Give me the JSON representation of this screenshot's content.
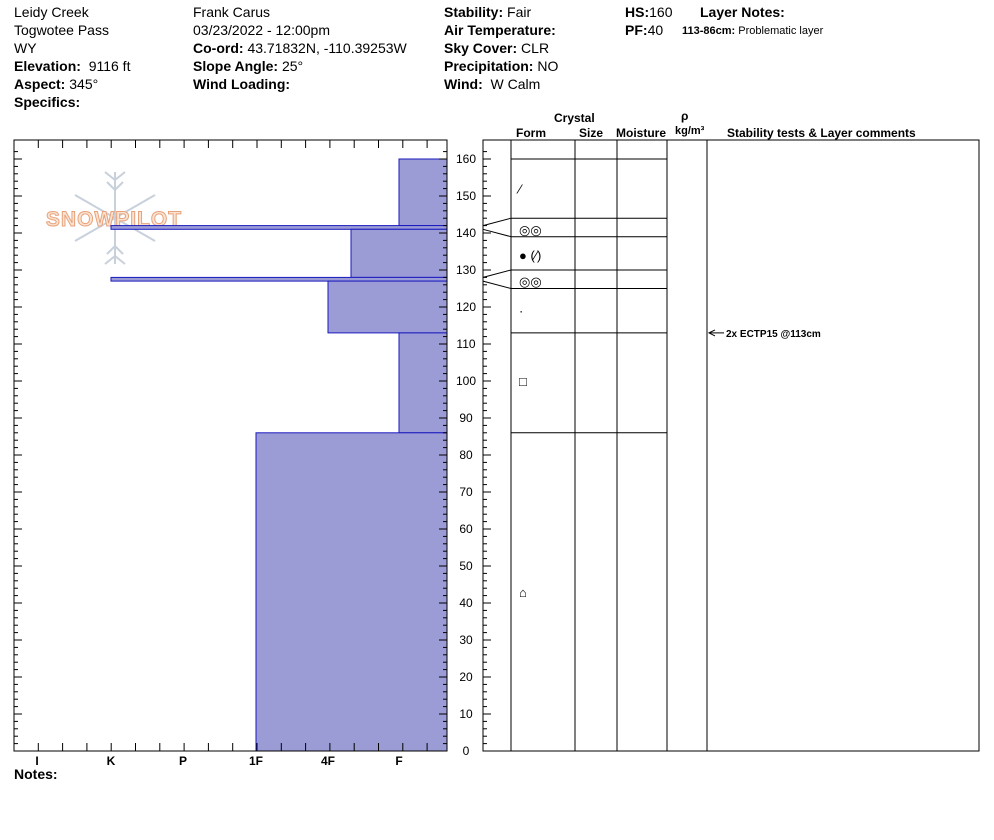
{
  "header": {
    "location": "Leidy Creek",
    "pass": "Togwotee Pass",
    "state": "WY",
    "elevation_label": "Elevation:",
    "elevation_value": "9116 ft",
    "aspect_label": "Aspect:",
    "aspect_value": "345°",
    "specifics_label": "Specifics:",
    "observer": "Frank  Carus",
    "datetime": "03/23/2022 - 12:00pm",
    "coord_label": "Co-ord:",
    "coord_value": "43.71832N, -110.39253W",
    "slope_label": "Slope Angle:",
    "slope_value": "25°",
    "wind_loading_label": "Wind Loading:",
    "stability_label": "Stability:",
    "stability_value": "Fair",
    "air_temp_label": "Air Temperature:",
    "sky_label": "Sky Cover:",
    "sky_value": "CLR",
    "precip_label": "Precipitation:",
    "precip_value": "NO",
    "wind_label": "Wind:",
    "wind_value": "W Calm",
    "hs_label": "HS:",
    "hs_value": "160",
    "pf_label": "PF:",
    "pf_value": "40",
    "layer_notes_label": "Layer Notes:",
    "layer_note_range": "113-86cm:",
    "layer_note_text": "Problematic layer"
  },
  "logo_text": "SNOWPILOT",
  "notes_label": "Notes:",
  "columns": {
    "crystal": "Crystal",
    "form": "Form",
    "size": "Size",
    "moisture": "Moisture",
    "rho": "ρ",
    "density_unit": "kg/m³",
    "stability": "Stability tests & Layer comments"
  },
  "stability_comment": "2x ECTP15 @113cm",
  "chart_data": {
    "type": "bar",
    "orientation": "horizontal",
    "ylabel": "",
    "ylim": [
      0,
      163
    ],
    "y_ticks": [
      0,
      10,
      20,
      30,
      40,
      50,
      60,
      70,
      80,
      90,
      100,
      110,
      120,
      130,
      140,
      150,
      160
    ],
    "hardness_scale": [
      "I",
      "K",
      "P",
      "1F",
      "4F",
      "F"
    ],
    "layers": [
      {
        "top": 160,
        "bottom": 142,
        "hardness": "F"
      },
      {
        "top": 142,
        "bottom": 141,
        "hardness": "K"
      },
      {
        "top": 141,
        "bottom": 128,
        "hardness": "4F+"
      },
      {
        "top": 128,
        "bottom": 127,
        "hardness": "K"
      },
      {
        "top": 127,
        "bottom": 113,
        "hardness": "4F"
      },
      {
        "top": 113,
        "bottom": 86,
        "hardness": "F"
      },
      {
        "top": 86,
        "bottom": 0,
        "hardness": "1F"
      }
    ],
    "profile_boundaries": [
      160,
      144,
      139,
      130,
      125,
      113,
      86
    ],
    "crystal_forms": [
      {
        "height": 152,
        "symbol": "⁄"
      },
      {
        "height": 141,
        "symbol": "◎◎"
      },
      {
        "height": 134,
        "symbol": "● (⁄)"
      },
      {
        "height": 127,
        "symbol": "◎◎"
      },
      {
        "height": 119,
        "symbol": "·"
      },
      {
        "height": 100,
        "symbol": "□"
      },
      {
        "height": 43,
        "symbol": "⌂"
      }
    ],
    "test_height": 113,
    "colors": {
      "fill": "#9b9bd6",
      "stroke": "#1a1abf"
    }
  }
}
